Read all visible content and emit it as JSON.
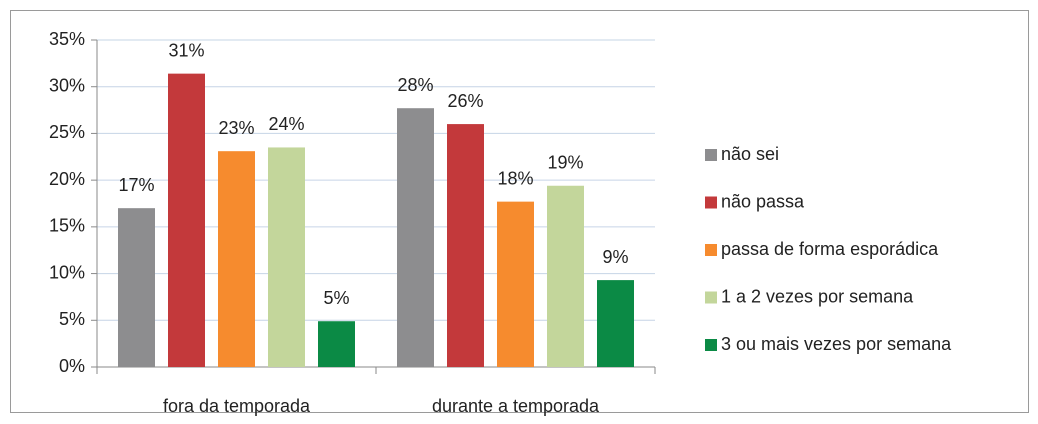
{
  "chart_data": {
    "type": "bar",
    "categories": [
      "fora da temporada",
      "durante a temporada"
    ],
    "series": [
      {
        "name": "não sei",
        "color": "#8d8d8f",
        "values": [
          17.0,
          27.7
        ],
        "value_labels": [
          "17%",
          "28%"
        ]
      },
      {
        "name": "não passa",
        "color": "#c3393b",
        "values": [
          31.4,
          26.0
        ],
        "value_labels": [
          "31%",
          "26%"
        ]
      },
      {
        "name": "passa de forma esporádica",
        "color": "#f68b2e",
        "values": [
          23.1,
          17.7
        ],
        "value_labels": [
          "23%",
          "18%"
        ]
      },
      {
        "name": "1 a 2 vezes por semana",
        "color": "#c3d69b",
        "values": [
          23.5,
          19.4
        ],
        "value_labels": [
          "24%",
          "19%"
        ]
      },
      {
        "name": "3 ou mais vezes por semana",
        "color": "#0b8a45",
        "values": [
          4.9,
          9.3
        ],
        "value_labels": [
          "5%",
          "9%"
        ]
      }
    ],
    "ylim": [
      0,
      35
    ],
    "yticks": [
      {
        "value": 0,
        "label": "0%"
      },
      {
        "value": 5,
        "label": "5%"
      },
      {
        "value": 10,
        "label": "10%"
      },
      {
        "value": 15,
        "label": "15%"
      },
      {
        "value": 20,
        "label": "20%"
      },
      {
        "value": 25,
        "label": "25%"
      },
      {
        "value": 30,
        "label": "30%"
      },
      {
        "value": 35,
        "label": "35%"
      }
    ],
    "grid": true,
    "legend": "right"
  }
}
